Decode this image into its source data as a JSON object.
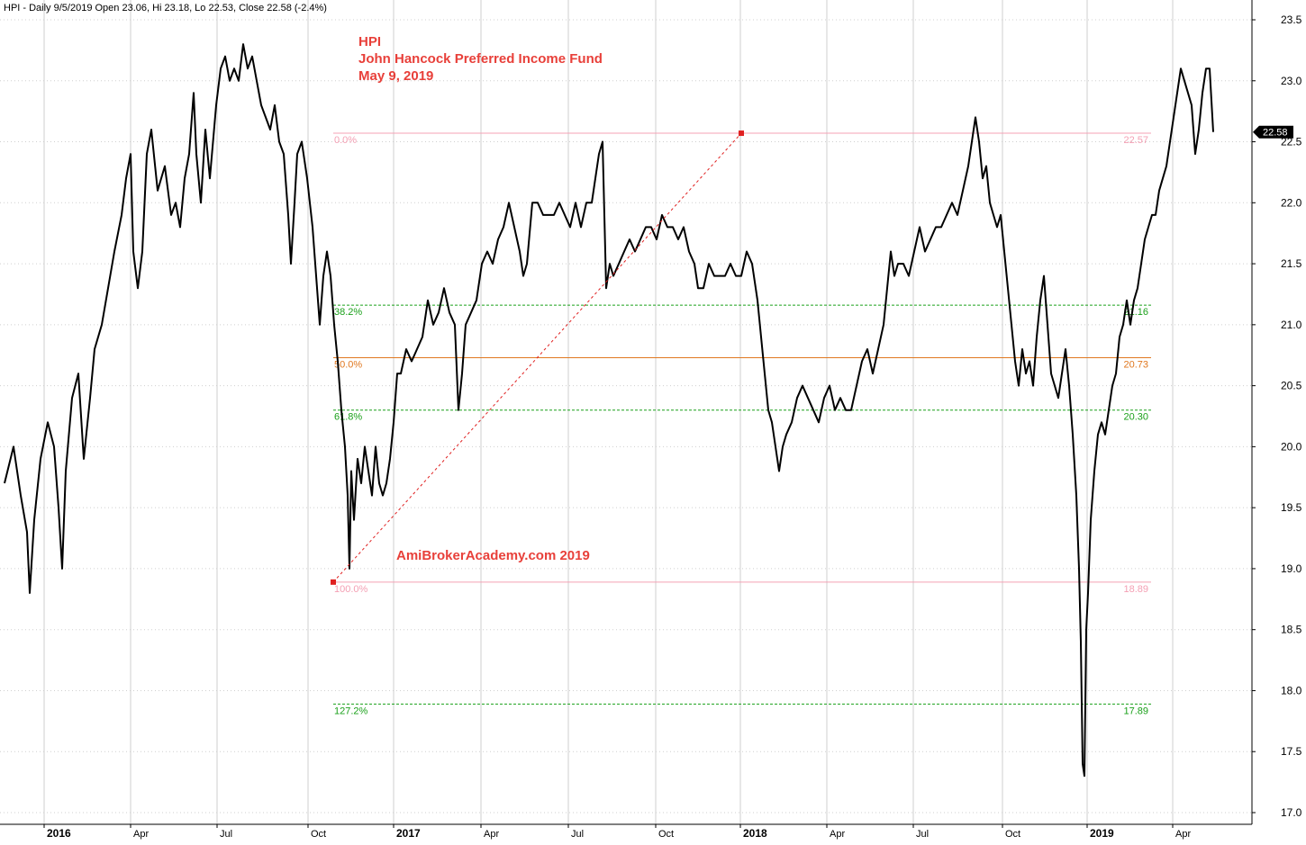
{
  "header": {
    "text": "HPI - Daily 9/5/2019 Open 23.06, Hi 23.18, Lo 22.53, Close 22.58 (-2.4%)"
  },
  "annotation": {
    "lines": [
      "HPI",
      "John Hancock Preferred Income Fund",
      "May 9, 2019"
    ],
    "watermark": "AmiBrokerAcademy.com  2019"
  },
  "colors": {
    "price": "#000000",
    "grid": "#cfcfcf",
    "fib_pink": "#f4a0b4",
    "fib_green": "#1aa01a",
    "fib_orange": "#e07820",
    "trend": "#e02020",
    "annotation": "#e8403a"
  },
  "last_price": {
    "value": "22.58"
  },
  "chart_data": {
    "type": "line",
    "series": [
      {
        "values": [
          [
            0,
            19.7
          ],
          [
            10,
            20.0
          ],
          [
            18,
            19.6
          ],
          [
            25,
            19.3
          ],
          [
            28,
            18.8
          ],
          [
            33,
            19.4
          ],
          [
            40,
            19.9
          ],
          [
            48,
            20.2
          ],
          [
            55,
            20.0
          ],
          [
            60,
            19.5
          ],
          [
            64,
            19.0
          ],
          [
            68,
            19.8
          ],
          [
            75,
            20.4
          ],
          [
            82,
            20.6
          ],
          [
            88,
            19.9
          ],
          [
            95,
            20.4
          ],
          [
            100,
            20.8
          ],
          [
            108,
            21.0
          ],
          [
            115,
            21.3
          ],
          [
            122,
            21.6
          ],
          [
            130,
            21.9
          ],
          [
            135,
            22.2
          ],
          [
            140,
            22.4
          ],
          [
            143,
            21.6
          ],
          [
            148,
            21.3
          ],
          [
            153,
            21.6
          ],
          [
            158,
            22.4
          ],
          [
            163,
            22.6
          ],
          [
            170,
            22.1
          ],
          [
            178,
            22.3
          ],
          [
            185,
            21.9
          ],
          [
            190,
            22.0
          ],
          [
            195,
            21.8
          ],
          [
            200,
            22.2
          ],
          [
            205,
            22.4
          ],
          [
            210,
            22.9
          ],
          [
            213,
            22.4
          ],
          [
            218,
            22.0
          ],
          [
            223,
            22.6
          ],
          [
            228,
            22.2
          ],
          [
            235,
            22.8
          ],
          [
            240,
            23.1
          ],
          [
            245,
            23.2
          ],
          [
            250,
            23.0
          ],
          [
            255,
            23.1
          ],
          [
            260,
            23.0
          ],
          [
            265,
            23.3
          ],
          [
            270,
            23.1
          ],
          [
            275,
            23.2
          ],
          [
            280,
            23.0
          ],
          [
            285,
            22.8
          ],
          [
            290,
            22.7
          ],
          [
            295,
            22.6
          ],
          [
            300,
            22.8
          ],
          [
            305,
            22.5
          ],
          [
            310,
            22.4
          ],
          [
            315,
            21.9
          ],
          [
            318,
            21.5
          ],
          [
            322,
            22.0
          ],
          [
            325,
            22.4
          ],
          [
            330,
            22.5
          ],
          [
            336,
            22.2
          ],
          [
            342,
            21.8
          ],
          [
            346,
            21.4
          ],
          [
            350,
            21.0
          ],
          [
            354,
            21.4
          ],
          [
            358,
            21.6
          ],
          [
            362,
            21.4
          ],
          [
            366,
            21.0
          ],
          [
            370,
            20.7
          ],
          [
            374,
            20.3
          ],
          [
            378,
            20.0
          ],
          [
            381,
            19.6
          ],
          [
            383,
            19.0
          ],
          [
            385,
            19.8
          ],
          [
            388,
            19.4
          ],
          [
            392,
            19.9
          ],
          [
            396,
            19.7
          ],
          [
            400,
            20.0
          ],
          [
            404,
            19.8
          ],
          [
            408,
            19.6
          ],
          [
            412,
            20.0
          ],
          [
            416,
            19.7
          ],
          [
            420,
            19.6
          ],
          [
            424,
            19.7
          ],
          [
            428,
            19.9
          ],
          [
            432,
            20.2
          ],
          [
            436,
            20.6
          ],
          [
            440,
            20.6
          ],
          [
            446,
            20.8
          ],
          [
            452,
            20.7
          ],
          [
            458,
            20.8
          ],
          [
            464,
            20.9
          ],
          [
            470,
            21.2
          ],
          [
            476,
            21.0
          ],
          [
            482,
            21.1
          ],
          [
            488,
            21.3
          ],
          [
            494,
            21.1
          ],
          [
            500,
            21.0
          ],
          [
            504,
            20.3
          ],
          [
            508,
            20.6
          ],
          [
            512,
            21.0
          ],
          [
            518,
            21.1
          ],
          [
            524,
            21.2
          ],
          [
            530,
            21.5
          ],
          [
            536,
            21.6
          ],
          [
            542,
            21.5
          ],
          [
            548,
            21.7
          ],
          [
            554,
            21.8
          ],
          [
            560,
            22.0
          ],
          [
            566,
            21.8
          ],
          [
            572,
            21.6
          ],
          [
            576,
            21.4
          ],
          [
            580,
            21.5
          ],
          [
            586,
            22.0
          ],
          [
            592,
            22.0
          ],
          [
            598,
            21.9
          ],
          [
            604,
            21.9
          ],
          [
            610,
            21.9
          ],
          [
            616,
            22.0
          ],
          [
            622,
            21.9
          ],
          [
            628,
            21.8
          ],
          [
            634,
            22.0
          ],
          [
            640,
            21.8
          ],
          [
            646,
            22.0
          ],
          [
            652,
            22.0
          ],
          [
            656,
            22.2
          ],
          [
            660,
            22.4
          ],
          [
            664,
            22.5
          ],
          [
            668,
            21.3
          ],
          [
            672,
            21.5
          ],
          [
            676,
            21.4
          ],
          [
            682,
            21.5
          ],
          [
            688,
            21.6
          ],
          [
            694,
            21.7
          ],
          [
            700,
            21.6
          ],
          [
            706,
            21.7
          ],
          [
            712,
            21.8
          ],
          [
            718,
            21.8
          ],
          [
            724,
            21.7
          ],
          [
            730,
            21.9
          ],
          [
            736,
            21.8
          ],
          [
            742,
            21.8
          ],
          [
            748,
            21.7
          ],
          [
            754,
            21.8
          ],
          [
            760,
            21.6
          ],
          [
            766,
            21.5
          ],
          [
            770,
            21.3
          ],
          [
            776,
            21.3
          ],
          [
            782,
            21.5
          ],
          [
            788,
            21.4
          ],
          [
            794,
            21.4
          ],
          [
            800,
            21.4
          ],
          [
            806,
            21.5
          ],
          [
            812,
            21.4
          ],
          [
            818,
            21.4
          ],
          [
            824,
            21.6
          ],
          [
            830,
            21.5
          ],
          [
            836,
            21.2
          ],
          [
            840,
            20.9
          ],
          [
            844,
            20.6
          ],
          [
            848,
            20.3
          ],
          [
            852,
            20.2
          ],
          [
            856,
            20.0
          ],
          [
            860,
            19.8
          ],
          [
            864,
            20.0
          ],
          [
            868,
            20.1
          ],
          [
            874,
            20.2
          ],
          [
            880,
            20.4
          ],
          [
            886,
            20.5
          ],
          [
            892,
            20.4
          ],
          [
            898,
            20.3
          ],
          [
            904,
            20.2
          ],
          [
            910,
            20.4
          ],
          [
            916,
            20.5
          ],
          [
            922,
            20.3
          ],
          [
            928,
            20.4
          ],
          [
            934,
            20.3
          ],
          [
            940,
            20.3
          ],
          [
            946,
            20.5
          ],
          [
            952,
            20.7
          ],
          [
            958,
            20.8
          ],
          [
            964,
            20.6
          ],
          [
            970,
            20.8
          ],
          [
            976,
            21.0
          ],
          [
            980,
            21.3
          ],
          [
            984,
            21.6
          ],
          [
            988,
            21.4
          ],
          [
            992,
            21.5
          ],
          [
            998,
            21.5
          ],
          [
            1004,
            21.4
          ],
          [
            1010,
            21.6
          ],
          [
            1016,
            21.8
          ],
          [
            1022,
            21.6
          ],
          [
            1028,
            21.7
          ],
          [
            1034,
            21.8
          ],
          [
            1040,
            21.8
          ],
          [
            1046,
            21.9
          ],
          [
            1052,
            22.0
          ],
          [
            1058,
            21.9
          ],
          [
            1064,
            22.1
          ],
          [
            1070,
            22.3
          ],
          [
            1074,
            22.5
          ],
          [
            1078,
            22.7
          ],
          [
            1082,
            22.5
          ],
          [
            1086,
            22.2
          ],
          [
            1090,
            22.3
          ],
          [
            1094,
            22.0
          ],
          [
            1098,
            21.9
          ],
          [
            1102,
            21.8
          ],
          [
            1106,
            21.9
          ],
          [
            1110,
            21.6
          ],
          [
            1114,
            21.3
          ],
          [
            1118,
            21.0
          ],
          [
            1122,
            20.7
          ],
          [
            1126,
            20.5
          ],
          [
            1130,
            20.8
          ],
          [
            1134,
            20.6
          ],
          [
            1138,
            20.7
          ],
          [
            1142,
            20.5
          ],
          [
            1146,
            20.9
          ],
          [
            1150,
            21.2
          ],
          [
            1154,
            21.4
          ],
          [
            1158,
            21.0
          ],
          [
            1162,
            20.6
          ],
          [
            1166,
            20.5
          ],
          [
            1170,
            20.4
          ],
          [
            1174,
            20.6
          ],
          [
            1178,
            20.8
          ],
          [
            1182,
            20.5
          ],
          [
            1186,
            20.1
          ],
          [
            1190,
            19.6
          ],
          [
            1193,
            19.0
          ],
          [
            1195,
            18.4
          ],
          [
            1197,
            17.4
          ],
          [
            1199,
            17.3
          ],
          [
            1201,
            18.5
          ],
          [
            1203,
            18.8
          ],
          [
            1206,
            19.4
          ],
          [
            1210,
            19.8
          ],
          [
            1214,
            20.1
          ],
          [
            1218,
            20.2
          ],
          [
            1222,
            20.1
          ],
          [
            1226,
            20.3
          ],
          [
            1230,
            20.5
          ],
          [
            1234,
            20.6
          ],
          [
            1238,
            20.9
          ],
          [
            1242,
            21.0
          ],
          [
            1246,
            21.2
          ],
          [
            1250,
            21.0
          ],
          [
            1254,
            21.2
          ],
          [
            1258,
            21.3
          ],
          [
            1262,
            21.5
          ],
          [
            1266,
            21.7
          ],
          [
            1270,
            21.8
          ],
          [
            1274,
            21.9
          ],
          [
            1278,
            21.9
          ],
          [
            1282,
            22.1
          ],
          [
            1286,
            22.2
          ],
          [
            1290,
            22.3
          ],
          [
            1294,
            22.5
          ],
          [
            1298,
            22.7
          ],
          [
            1302,
            22.9
          ],
          [
            1306,
            23.1
          ],
          [
            1310,
            23.0
          ],
          [
            1314,
            22.9
          ],
          [
            1318,
            22.8
          ],
          [
            1322,
            22.4
          ],
          [
            1326,
            22.6
          ],
          [
            1330,
            22.9
          ],
          [
            1334,
            23.1
          ],
          [
            1338,
            23.1
          ],
          [
            1342,
            22.58
          ]
        ]
      }
    ],
    "y_axis": {
      "range": [
        17.0,
        23.5
      ],
      "ticks": [
        "17.0",
        "17.5",
        "18.0",
        "18.5",
        "19.0",
        "19.5",
        "20.0",
        "20.5",
        "21.0",
        "21.5",
        "22.0",
        "22.5",
        "23.0",
        "23.5"
      ]
    },
    "x_axis": {
      "ticks": [
        {
          "label": "2016",
          "bold": true
        },
        {
          "label": "Apr",
          "bold": false
        },
        {
          "label": "Jul",
          "bold": false
        },
        {
          "label": "Oct",
          "bold": false
        },
        {
          "label": "2017",
          "bold": true
        },
        {
          "label": "Apr",
          "bold": false
        },
        {
          "label": "Jul",
          "bold": false
        },
        {
          "label": "Oct",
          "bold": false
        },
        {
          "label": "2018",
          "bold": true
        },
        {
          "label": "Apr",
          "bold": false
        },
        {
          "label": "Jul",
          "bold": false
        },
        {
          "label": "Oct",
          "bold": false
        },
        {
          "label": "2019",
          "bold": true
        },
        {
          "label": "Apr",
          "bold": false
        }
      ]
    },
    "fibonacci": {
      "anchor_low": 18.89,
      "anchor_high": 22.57,
      "levels": [
        {
          "pct": "0.0%",
          "value": "22.57",
          "price": 22.57,
          "style": "pink"
        },
        {
          "pct": "38.2%",
          "value": "21.16",
          "price": 21.16,
          "style": "green-dashed"
        },
        {
          "pct": "50.0%",
          "value": "20.73",
          "price": 20.73,
          "style": "orange"
        },
        {
          "pct": "61.8%",
          "value": "20.30",
          "price": 20.3,
          "style": "green-dashed"
        },
        {
          "pct": "100.0%",
          "value": "18.89",
          "price": 18.89,
          "style": "pink"
        },
        {
          "pct": "127.2%",
          "value": "17.89",
          "price": 17.89,
          "style": "green-dashed"
        }
      ]
    },
    "grid": true
  }
}
